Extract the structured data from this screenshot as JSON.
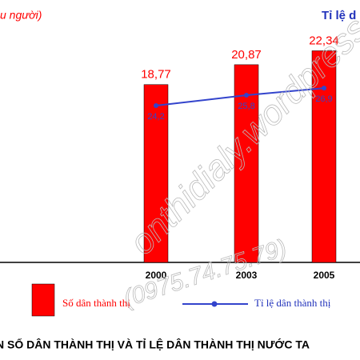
{
  "chart_data": {
    "type": "bar-line",
    "y_label": "u người)",
    "y2_label": "Tỉ lệ d",
    "title": "N SỐ DÂN THÀNH THỊ VÀ TỈ LỆ DÂN THÀNH THỊ NƯỚC TA",
    "categories": [
      "2000",
      "2003",
      "2005"
    ],
    "ylim": [
      0,
      27.7
    ],
    "y2lim": [
      0,
      40.5
    ],
    "series": [
      {
        "name": "Số dân thành thị",
        "type": "bar",
        "color": "#ff0000",
        "values": [
          18.77,
          20.87,
          22.34
        ],
        "value_labels": [
          "18,77",
          "20,87",
          "22,34"
        ]
      },
      {
        "name": "Tỉ lệ dân thành thị",
        "type": "line",
        "axis": "y2",
        "color": "#3344cc",
        "values": [
          24.2,
          25.8,
          26.9
        ],
        "value_labels": [
          "24,2",
          "25,8",
          "26,9"
        ]
      }
    ],
    "watermarks": [
      "onthidialy.wordpress.com",
      "(0975.74.75.79)"
    ]
  }
}
